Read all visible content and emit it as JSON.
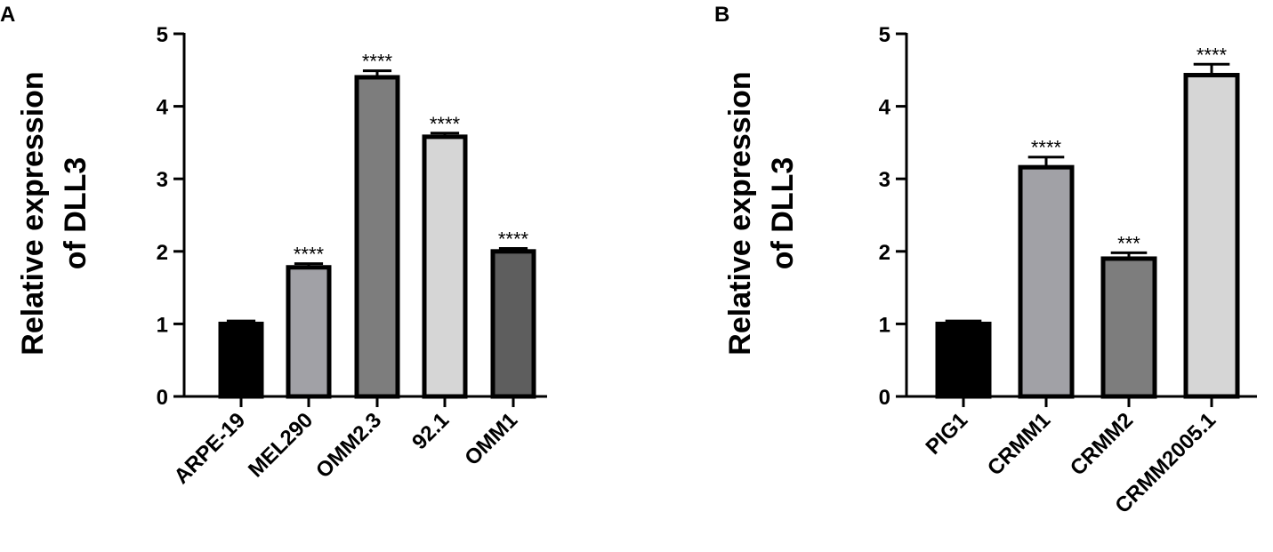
{
  "chart_data": [
    {
      "type": "bar",
      "panel": "A",
      "ylabel_lines": [
        "Relative expression",
        "of DLL3"
      ],
      "ylim": [
        0,
        5
      ],
      "yticks": [
        0,
        1,
        2,
        3,
        4,
        5
      ],
      "categories": [
        "ARPE-19",
        "MEL290",
        "OMM2.3",
        "92.1",
        "OMM1"
      ],
      "values": [
        1.0,
        1.78,
        4.4,
        3.58,
        2.0
      ],
      "errors": [
        0.04,
        0.05,
        0.09,
        0.05,
        0.04
      ],
      "significance": [
        "",
        "****",
        "****",
        "****",
        "****"
      ],
      "colors": [
        "#000000",
        "#a1a1a6",
        "#7d7d7d",
        "#d6d6d6",
        "#5e5e5e"
      ]
    },
    {
      "type": "bar",
      "panel": "B",
      "ylabel_lines": [
        "Relative expression",
        "of DLL3"
      ],
      "ylim": [
        0,
        5
      ],
      "yticks": [
        0,
        1,
        2,
        3,
        4,
        5
      ],
      "categories": [
        "PIG1",
        "CRMM1",
        "CRMM2",
        "CRMM2005.1"
      ],
      "values": [
        1.0,
        3.16,
        1.9,
        4.43
      ],
      "errors": [
        0.04,
        0.14,
        0.08,
        0.15
      ],
      "significance": [
        "",
        "****",
        "***",
        "****"
      ],
      "colors": [
        "#000000",
        "#a1a1a6",
        "#7d7d7d",
        "#d6d6d6"
      ]
    }
  ]
}
